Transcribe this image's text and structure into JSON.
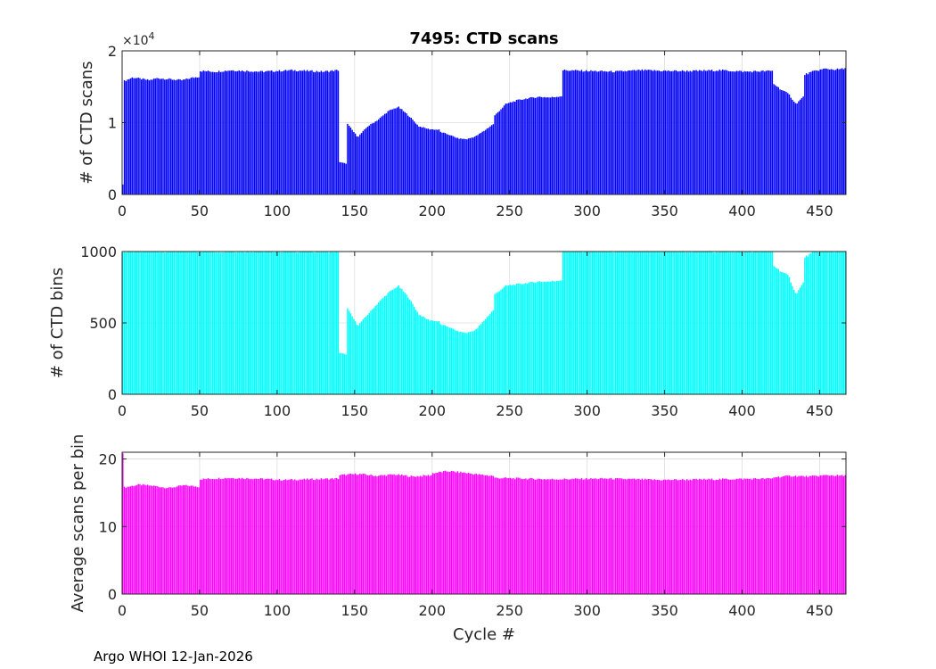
{
  "figure": {
    "title": "7495: CTD scans",
    "xlabel": "Cycle #",
    "footer": "Argo WHOI 12-Jan-2026"
  },
  "chart_data": [
    {
      "type": "bar",
      "ylabel": "# of CTD scans",
      "color": "#0000ff",
      "xlim": [
        0,
        467
      ],
      "ylim": [
        0,
        20000
      ],
      "xticks": [
        0,
        50,
        100,
        150,
        200,
        250,
        300,
        350,
        400,
        450
      ],
      "yticks": [
        0,
        10000,
        20000
      ],
      "ytick_labels": [
        "0",
        "1",
        "2"
      ],
      "y_exponent_label": "×10^4",
      "grid": true,
      "segments": [
        {
          "from": 0,
          "to": 1,
          "values": [
            1400
          ]
        },
        {
          "from": 1,
          "to": 50,
          "values": [
            15800,
            16300,
            16100,
            15900,
            16200,
            16100,
            16000,
            15900,
            16200,
            16400
          ]
        },
        {
          "from": 50,
          "to": 140,
          "values": [
            17200,
            17100,
            17300,
            17200,
            17100,
            17200,
            17300,
            17200,
            17100,
            17300
          ]
        },
        {
          "from": 140,
          "to": 145,
          "values": [
            4500,
            4400,
            4300
          ]
        },
        {
          "from": 145,
          "to": 205,
          "values": [
            9800,
            8000,
            9500,
            10400,
            11600,
            12200,
            11000,
            9500,
            9100,
            9000
          ]
        },
        {
          "from": 205,
          "to": 240,
          "values": [
            8700,
            8300,
            7800,
            7700,
            8100,
            8900,
            9800
          ]
        },
        {
          "from": 240,
          "to": 284,
          "values": [
            11000,
            12600,
            13100,
            13400,
            13600,
            13500,
            13700
          ]
        },
        {
          "from": 284,
          "to": 420,
          "values": [
            17300,
            17200,
            17100,
            17300,
            17200,
            17200,
            17300,
            17100,
            17200
          ]
        },
        {
          "from": 420,
          "to": 440,
          "values": [
            15400,
            14600,
            14000,
            12600,
            13600
          ]
        },
        {
          "from": 440,
          "to": 467,
          "values": [
            16700,
            17200,
            17500,
            17400,
            17500
          ]
        }
      ]
    },
    {
      "type": "bar",
      "ylabel": "# of CTD bins",
      "color": "#00ffff",
      "xlim": [
        0,
        467
      ],
      "ylim": [
        0,
        1000
      ],
      "xticks": [
        0,
        50,
        100,
        150,
        200,
        250,
        300,
        350,
        400,
        450
      ],
      "yticks": [
        0,
        500,
        1000
      ],
      "ytick_labels": [
        "0",
        "500",
        "1000"
      ],
      "grid": true,
      "segments": [
        {
          "from": 0,
          "to": 140,
          "values": [
            1000
          ]
        },
        {
          "from": 140,
          "to": 145,
          "values": [
            290,
            285,
            280
          ]
        },
        {
          "from": 145,
          "to": 205,
          "values": [
            600,
            480,
            560,
            640,
            710,
            760,
            680,
            560,
            520,
            510
          ]
        },
        {
          "from": 205,
          "to": 240,
          "values": [
            490,
            470,
            440,
            430,
            450,
            520,
            590
          ]
        },
        {
          "from": 240,
          "to": 284,
          "values": [
            700,
            760,
            770,
            780,
            790,
            790,
            800
          ]
        },
        {
          "from": 284,
          "to": 420,
          "values": [
            1000
          ]
        },
        {
          "from": 420,
          "to": 440,
          "values": [
            900,
            860,
            830,
            700,
            780
          ]
        },
        {
          "from": 440,
          "to": 467,
          "values": [
            960,
            1000,
            1000,
            1000,
            1000
          ]
        }
      ]
    },
    {
      "type": "bar",
      "ylabel": "Average scans per bin",
      "color": "#ff00ff",
      "xlim": [
        0,
        467
      ],
      "ylim": [
        0,
        21
      ],
      "xticks": [
        0,
        50,
        100,
        150,
        200,
        250,
        300,
        350,
        400,
        450
      ],
      "yticks": [
        0,
        10,
        20
      ],
      "ytick_labels": [
        "0",
        "10",
        "20"
      ],
      "grid": true,
      "segments": [
        {
          "from": 0,
          "to": 1,
          "values": [
            21
          ]
        },
        {
          "from": 1,
          "to": 50,
          "values": [
            15.8,
            16.2,
            16.0,
            15.7,
            16.1,
            15.9
          ]
        },
        {
          "from": 50,
          "to": 140,
          "values": [
            17.0,
            17.2,
            17.1,
            16.9,
            17.0,
            17.1
          ]
        },
        {
          "from": 140,
          "to": 200,
          "values": [
            17.6,
            17.8,
            17.5,
            17.7,
            17.4,
            17.6
          ]
        },
        {
          "from": 200,
          "to": 240,
          "values": [
            17.9,
            18.2,
            18.0,
            17.7,
            17.5
          ]
        },
        {
          "from": 240,
          "to": 420,
          "values": [
            17.2,
            17.0,
            17.1,
            16.9,
            17.0,
            17.1
          ]
        },
        {
          "from": 420,
          "to": 467,
          "values": [
            17.3,
            17.5,
            17.4,
            17.6,
            17.5
          ]
        }
      ]
    }
  ]
}
